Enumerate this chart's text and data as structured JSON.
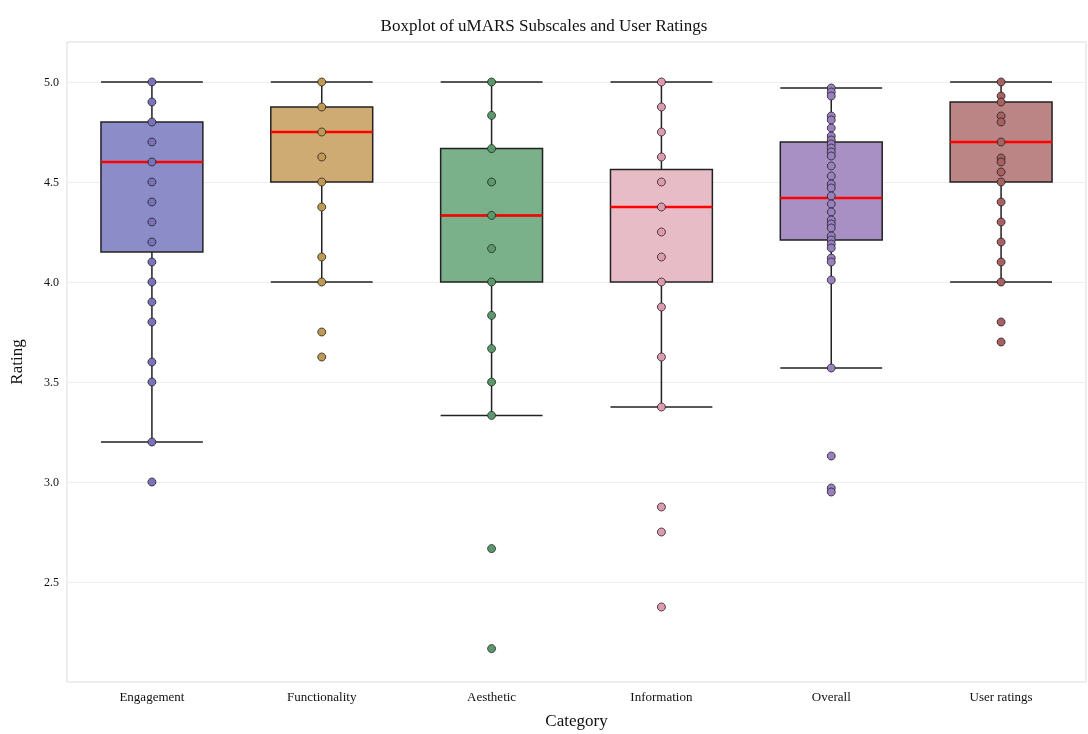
{
  "chart_data": {
    "type": "box",
    "title": "Boxplot of uMARS Subscales and User Ratings",
    "xlabel": "Category",
    "ylabel": "Rating",
    "categories": [
      "Engagement",
      "Functionality",
      "Aesthetic",
      "Information",
      "Overall",
      "User ratings"
    ],
    "colors": [
      "#8c8cc8",
      "#cfab74",
      "#7ab08a",
      "#e8bcc6",
      "#a890c4",
      "#bc8585"
    ],
    "ylim": [
      2.0,
      5.2
    ],
    "yticks": [
      2.5,
      {
        "value": 3,
        "label": "3.0"
      },
      3.5,
      {
        "value": 4,
        "label": "4.0"
      },
      4.5,
      {
        "value": 5,
        "label": "5.0"
      }
    ],
    "grid": "y",
    "marker": "circle",
    "boxes": [
      {
        "low": 3.2,
        "q1": 4.15,
        "median": 4.6,
        "q3": 4.8,
        "high": 5.0,
        "outliers": [
          3.0
        ]
      },
      {
        "low": 4.0,
        "q1": 4.5,
        "median": 4.75,
        "q3": 4.875,
        "high": 5.0,
        "outliers": [
          3.75,
          3.625
        ]
      },
      {
        "low": 3.333,
        "q1": 4.0,
        "median": 4.333,
        "q3": 4.667,
        "high": 5.0,
        "outliers": [
          2.667,
          2.167
        ]
      },
      {
        "low": 3.375,
        "q1": 4.0,
        "median": 4.375,
        "q3": 4.562,
        "high": 5.0,
        "outliers": [
          2.875,
          2.75,
          2.375
        ]
      },
      {
        "low": 3.57,
        "q1": 4.21,
        "median": 4.42,
        "q3": 4.7,
        "high": 4.97,
        "outliers": [
          3.13,
          2.97,
          2.95
        ]
      },
      {
        "low": 4.0,
        "q1": 4.5,
        "median": 4.7,
        "q3": 4.9,
        "high": 5.0,
        "outliers": [
          3.8,
          3.7
        ]
      }
    ],
    "series": [
      {
        "type": "scatter",
        "color": "#7b72bd",
        "x": [
          "Engagement",
          "Engagement",
          "Engagement",
          "Engagement",
          "Engagement",
          "Engagement",
          "Engagement",
          "Engagement",
          "Engagement",
          "Engagement",
          "Engagement",
          "Engagement",
          "Engagement",
          "Engagement",
          "Engagement",
          "Engagement"
        ],
        "values": [
          5.0,
          4.9,
          4.8,
          4.7,
          4.6,
          4.5,
          4.4,
          4.3,
          4.2,
          4.1,
          4.0,
          3.9,
          3.8,
          3.6,
          3.5,
          3.2
        ]
      },
      {
        "type": "scatter",
        "color": "#c09a55",
        "x": [
          "Functionality",
          "Functionality",
          "Functionality",
          "Functionality",
          "Functionality",
          "Functionality",
          "Functionality",
          "Functionality"
        ],
        "values": [
          5.0,
          4.875,
          4.75,
          4.625,
          4.5,
          4.375,
          4.125,
          4.0
        ]
      },
      {
        "type": "scatter",
        "color": "#5a9a6a",
        "x": [
          "Aesthetic",
          "Aesthetic",
          "Aesthetic",
          "Aesthetic",
          "Aesthetic",
          "Aesthetic",
          "Aesthetic",
          "Aesthetic",
          "Aesthetic",
          "Aesthetic",
          "Aesthetic"
        ],
        "values": [
          5.0,
          4.833,
          4.667,
          4.5,
          4.333,
          4.167,
          4.0,
          3.833,
          3.667,
          3.5,
          3.333
        ]
      },
      {
        "type": "scatter",
        "color": "#e09ab0",
        "x": [
          "Information",
          "Information",
          "Information",
          "Information",
          "Information",
          "Information",
          "Information",
          "Information",
          "Information",
          "Information",
          "Information",
          "Information"
        ],
        "values": [
          5.0,
          4.875,
          4.75,
          4.625,
          4.5,
          4.375,
          4.25,
          4.125,
          4.0,
          3.875,
          3.625,
          3.375
        ]
      },
      {
        "type": "scatter",
        "color": "#9a80c0",
        "x": [
          "Overall",
          "Overall",
          "Overall",
          "Overall",
          "Overall",
          "Overall",
          "Overall",
          "Overall",
          "Overall",
          "Overall",
          "Overall",
          "Overall",
          "Overall",
          "Overall",
          "Overall",
          "Overall",
          "Overall",
          "Overall",
          "Overall",
          "Overall",
          "Overall",
          "Overall",
          "Overall",
          "Overall",
          "Overall",
          "Overall",
          "Overall",
          "Overall",
          "Overall",
          "Overall",
          "Overall"
        ],
        "values": [
          4.97,
          4.95,
          4.93,
          null,
          4.83,
          4.81,
          4.77,
          4.73,
          4.71,
          4.69,
          4.67,
          4.65,
          4.63,
          4.58,
          4.53,
          4.49,
          4.47,
          4.43,
          4.39,
          4.35,
          4.31,
          4.29,
          4.27,
          4.23,
          4.21,
          4.19,
          4.17,
          4.12,
          4.1,
          4.01,
          3.57
        ]
      },
      {
        "type": "scatter",
        "color": "#a86060",
        "x": [
          "User ratings",
          "User ratings",
          "User ratings",
          "User ratings",
          "User ratings",
          "User ratings",
          "User ratings",
          "User ratings",
          "User ratings",
          "User ratings",
          "User ratings",
          "User ratings",
          "User ratings",
          "User ratings",
          "User ratings"
        ],
        "values": [
          5.0,
          4.93,
          4.9,
          4.83,
          4.8,
          4.7,
          4.62,
          4.6,
          4.55,
          4.5,
          4.4,
          4.3,
          4.2,
          4.1,
          4.0
        ]
      }
    ]
  }
}
